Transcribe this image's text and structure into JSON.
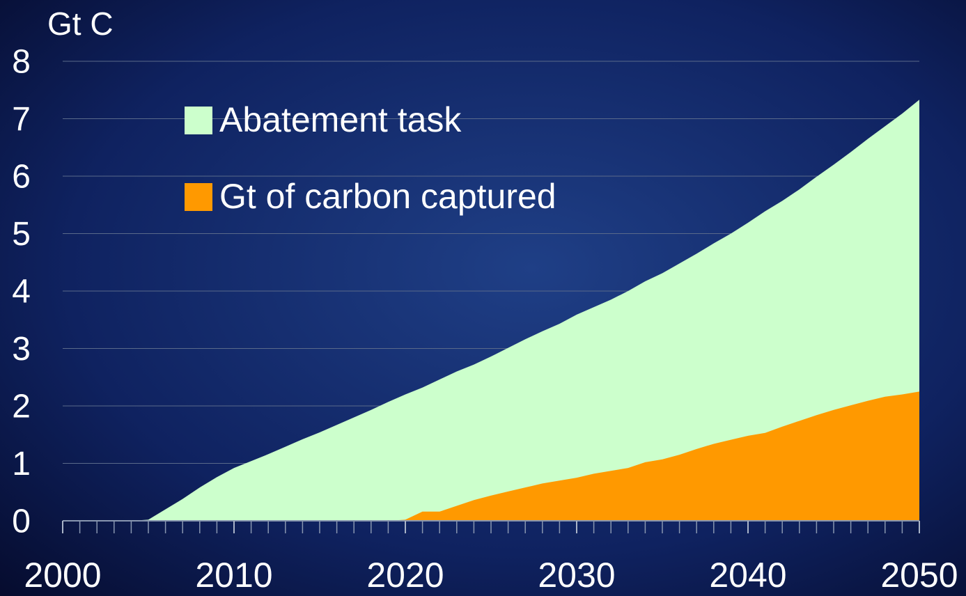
{
  "chart_data": {
    "type": "area",
    "y_axis_label": "Gt C",
    "x": [
      2000,
      2001,
      2002,
      2003,
      2004,
      2005,
      2006,
      2007,
      2008,
      2009,
      2010,
      2011,
      2012,
      2013,
      2014,
      2015,
      2016,
      2017,
      2018,
      2019,
      2020,
      2021,
      2022,
      2023,
      2024,
      2025,
      2026,
      2027,
      2028,
      2029,
      2030,
      2031,
      2032,
      2033,
      2034,
      2035,
      2036,
      2037,
      2038,
      2039,
      2040,
      2041,
      2042,
      2043,
      2044,
      2045,
      2046,
      2047,
      2048,
      2049,
      2050
    ],
    "series": [
      {
        "name": "Abatement task",
        "color": "#ccffcc",
        "values": [
          0,
          0,
          0,
          0,
          0,
          0.02,
          0.2,
          0.38,
          0.58,
          0.76,
          0.92,
          1.04,
          1.16,
          1.29,
          1.42,
          1.54,
          1.67,
          1.8,
          1.93,
          2.07,
          2.2,
          2.32,
          2.46,
          2.6,
          2.72,
          2.86,
          3.01,
          3.16,
          3.3,
          3.43,
          3.59,
          3.72,
          3.85,
          4.0,
          4.17,
          4.31,
          4.48,
          4.65,
          4.83,
          5.0,
          5.19,
          5.39,
          5.57,
          5.77,
          5.99,
          6.2,
          6.42,
          6.65,
          6.87,
          7.09,
          7.33
        ]
      },
      {
        "name": "Gt of carbon captured",
        "color": "#ff9900",
        "values": [
          0,
          0,
          0,
          0,
          0,
          0,
          0,
          0,
          0,
          0,
          0,
          0,
          0,
          0,
          0,
          0,
          0,
          0,
          0,
          0,
          0.02,
          0.16,
          0.16,
          0.26,
          0.36,
          0.44,
          0.51,
          0.58,
          0.65,
          0.7,
          0.75,
          0.82,
          0.87,
          0.92,
          1.02,
          1.07,
          1.15,
          1.25,
          1.34,
          1.41,
          1.48,
          1.53,
          1.64,
          1.74,
          1.84,
          1.93,
          2.01,
          2.09,
          2.16,
          2.2,
          2.25
        ]
      }
    ],
    "xlim": [
      2000,
      2050
    ],
    "xticks": [
      2000,
      2010,
      2020,
      2030,
      2040,
      2050
    ],
    "ylim": [
      0,
      8
    ],
    "yticks": [
      0,
      1,
      2,
      3,
      4,
      5,
      6,
      7,
      8
    ],
    "grid": true
  }
}
